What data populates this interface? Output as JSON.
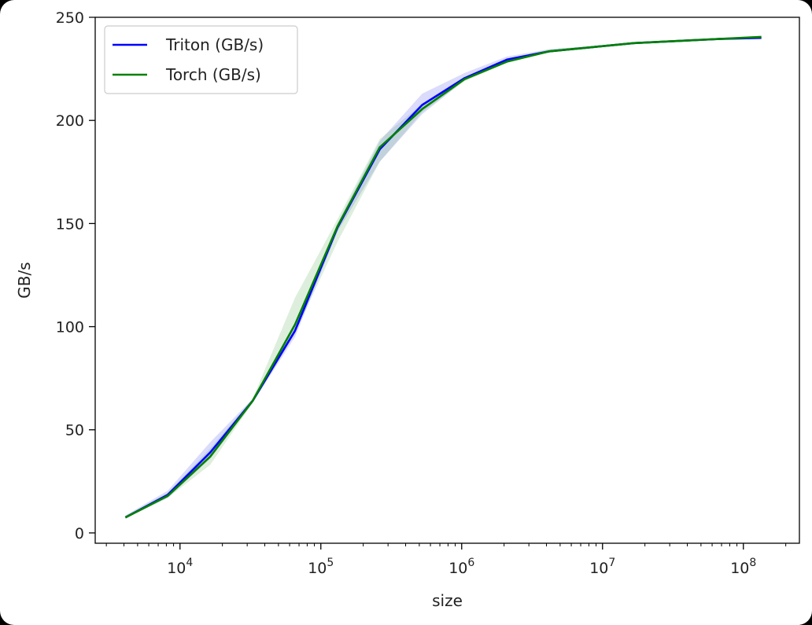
{
  "chart_data": {
    "type": "line",
    "title": "",
    "xlabel": "size",
    "ylabel": "GB/s",
    "xscale": "log",
    "xlim": [
      2500,
      250000000
    ],
    "ylim": [
      -5,
      250
    ],
    "yticks": [
      0,
      50,
      100,
      150,
      200,
      250
    ],
    "xticks": [
      {
        "value": 10000,
        "base": "10",
        "exp": "4"
      },
      {
        "value": 100000,
        "base": "10",
        "exp": "5"
      },
      {
        "value": 1000000,
        "base": "10",
        "exp": "6"
      },
      {
        "value": 10000000,
        "base": "10",
        "exp": "7"
      },
      {
        "value": 100000000,
        "base": "10",
        "exp": "8"
      }
    ],
    "grid": false,
    "legend_position": "top-left",
    "x": [
      4096,
      8192,
      16384,
      32768,
      65536,
      131072,
      262144,
      524288,
      1048576,
      2097152,
      4194304,
      8388608,
      16777216,
      33554432,
      67108864,
      134217728
    ],
    "series": [
      {
        "name": "Triton (GB/s)",
        "color": "#0000ff",
        "band_color": "#5a5af0",
        "values": [
          7.5,
          18.5,
          39,
          64,
          98,
          148,
          186,
          207.5,
          220.5,
          229.5,
          233.5,
          235.5,
          237.5,
          238.5,
          239.5,
          240
        ],
        "lower": [
          7,
          17,
          36,
          63,
          95,
          146,
          180,
          203,
          219.5,
          229,
          233,
          235,
          237,
          238,
          239,
          239.5
        ],
        "upper": [
          8.5,
          20.5,
          44,
          65,
          102,
          150,
          190,
          213,
          223,
          231,
          234.5,
          236,
          238,
          239,
          240,
          240.5
        ]
      },
      {
        "name": "Torch (GB/s)",
        "color": "#008000",
        "band_color": "#66b266",
        "values": [
          7.5,
          18,
          37,
          64,
          101,
          148.5,
          187,
          205.5,
          220,
          228.5,
          233.5,
          235.5,
          237.5,
          238.5,
          239.5,
          240.5
        ],
        "lower": [
          7,
          17,
          33,
          63,
          97,
          141,
          180,
          204,
          219,
          228,
          233,
          235,
          237,
          238,
          239,
          240
        ],
        "upper": [
          8,
          19.5,
          41,
          65,
          114,
          152,
          191,
          208,
          221,
          229.5,
          234.5,
          236,
          238,
          239,
          240,
          241
        ]
      }
    ]
  }
}
